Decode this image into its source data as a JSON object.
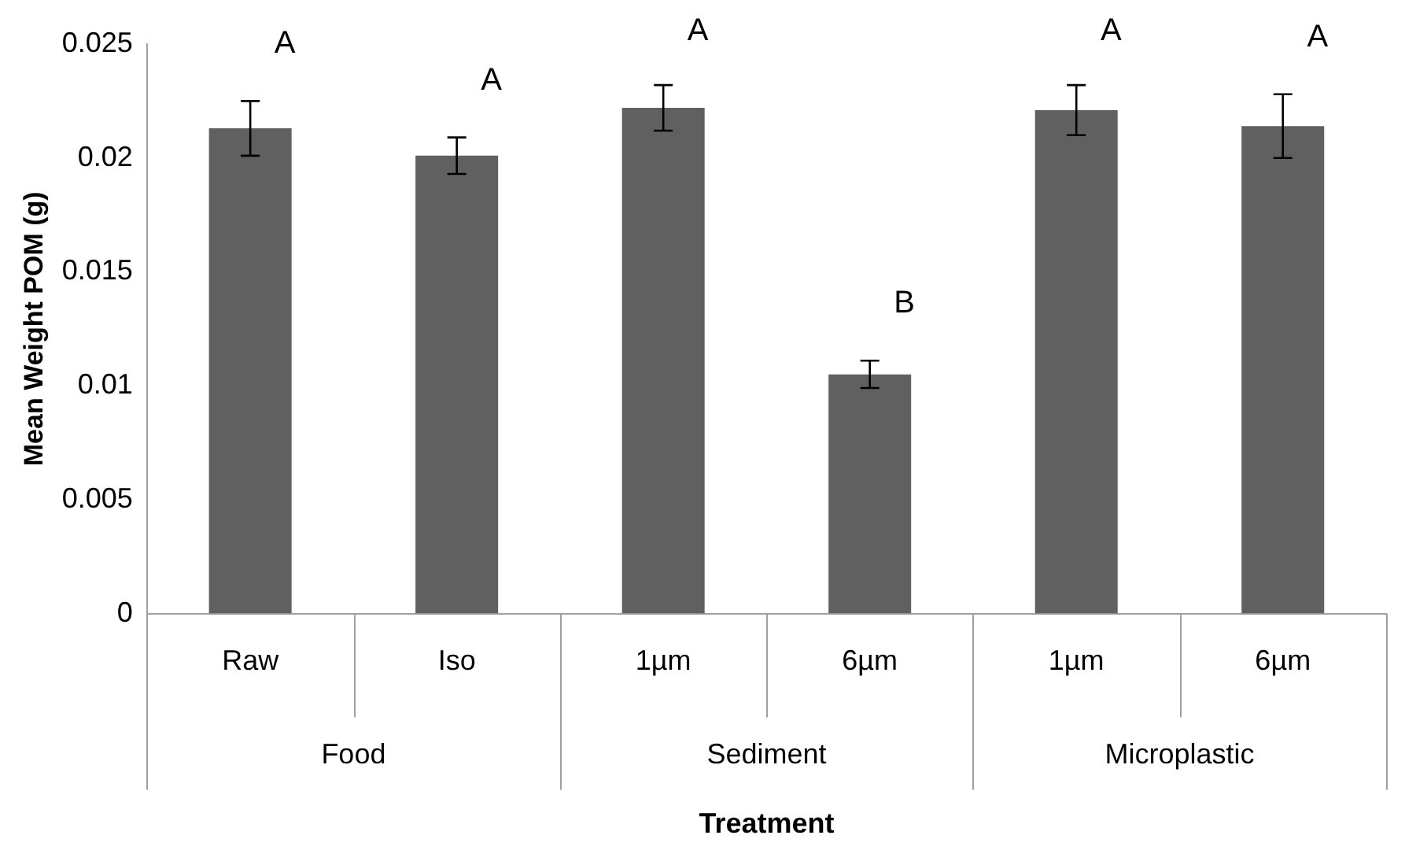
{
  "chart_data": {
    "type": "bar",
    "xlabel": "Treatment",
    "ylabel": "Mean Weight POM (g)",
    "categories": [
      "Raw",
      "Iso",
      "1µm",
      "6µm",
      "1µm",
      "6µm"
    ],
    "values": [
      0.0213,
      0.0201,
      0.0222,
      0.0105,
      0.0221,
      0.0214
    ],
    "errors": [
      0.0012,
      0.0008,
      0.001,
      0.0006,
      0.0011,
      0.0014
    ],
    "value_labels": [
      "A",
      "A",
      "A",
      "B",
      "A",
      "A"
    ],
    "color": "#606060",
    "annotations": [
      "Food",
      "Sediment",
      "Microplastic"
    ],
    "ylim": [
      0,
      0.025
    ],
    "yticks": [
      0,
      0.005,
      0.01,
      0.015,
      0.02,
      0.025
    ],
    "grid": false,
    "legend": false
  }
}
